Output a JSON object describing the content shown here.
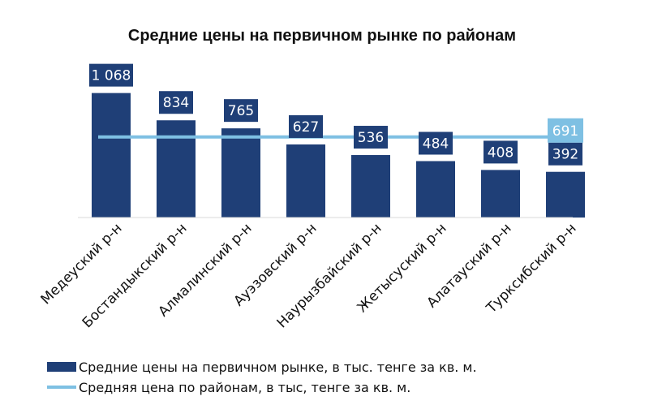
{
  "chart_data": {
    "type": "bar",
    "title": "Средние цены на первичном рынке по районам",
    "categories": [
      "Медеуский р-н",
      "Бостандыкский р-н",
      "Алмалинский р-н",
      "Ауэзовский р-н",
      "Наурызбайский р-н",
      "Жетысуский р-н",
      "Алатауский р-н",
      "Турксибский р-н"
    ],
    "series": [
      {
        "name": "Средние цены на первичном рынке, в тыс. тенге за кв. м.",
        "type": "bar",
        "values": [
          1068,
          834,
          765,
          627,
          536,
          484,
          408,
          392
        ],
        "labels": [
          "1 068",
          "834",
          "765",
          "627",
          "536",
          "484",
          "408",
          "392"
        ],
        "color": "#1f3f77"
      },
      {
        "name": "Средняя цена по районам, в тыс, тенге за кв. м.",
        "type": "line",
        "value": 691,
        "label": "691",
        "color": "#7ec0e3"
      }
    ],
    "ylim": [
      0,
      1100
    ],
    "grid": false,
    "legend": "bottom"
  }
}
